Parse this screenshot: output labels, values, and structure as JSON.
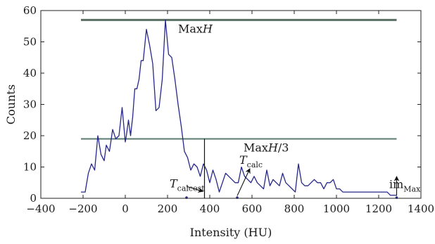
{
  "chart_data": {
    "type": "line",
    "xlabel": "Intensity (HU)",
    "ylabel": "Counts",
    "xlim": [
      -400,
      1400
    ],
    "ylim": [
      0,
      60
    ],
    "xticks": [
      "-400",
      "-200",
      "0",
      "200",
      "400",
      "600",
      "800",
      "1000",
      "1200",
      "1400"
    ],
    "yticks": [
      "0",
      "10",
      "20",
      "30",
      "40",
      "50",
      "60"
    ],
    "series": [
      {
        "color": "#27278a",
        "x": [
          -210,
          -190,
          -175,
          -160,
          -145,
          -130,
          -115,
          -100,
          -90,
          -75,
          -60,
          -45,
          -30,
          -15,
          0,
          5,
          15,
          25,
          35,
          45,
          55,
          65,
          75,
          85,
          100,
          115,
          130,
          145,
          160,
          175,
          190,
          205,
          220,
          235,
          250,
          265,
          280,
          295,
          310,
          325,
          340,
          355,
          370,
          385,
          400,
          415,
          430,
          445,
          460,
          475,
          490,
          505,
          520,
          535,
          550,
          565,
          580,
          595,
          610,
          625,
          640,
          655,
          670,
          685,
          700,
          715,
          730,
          745,
          760,
          775,
          790,
          805,
          820,
          835,
          850,
          865,
          880,
          895,
          910,
          925,
          940,
          955,
          970,
          985,
          1000,
          1015,
          1030,
          1045,
          1060,
          1075,
          1090,
          1105,
          1120,
          1135,
          1150,
          1165,
          1180,
          1195,
          1210,
          1225,
          1240,
          1255,
          1270,
          1285
        ],
        "values": [
          2,
          2,
          8,
          11,
          9,
          20,
          14,
          12,
          17,
          15,
          22,
          19,
          20,
          29,
          18,
          20,
          25,
          20,
          26,
          35,
          35,
          38,
          44,
          44,
          54,
          49,
          43,
          28,
          29,
          38,
          57,
          46,
          45,
          38,
          30,
          23,
          15,
          13,
          9,
          11,
          10,
          7,
          11,
          9,
          5,
          9,
          6,
          2,
          5,
          8,
          7,
          6,
          5,
          5,
          10,
          7,
          6,
          5,
          7,
          5,
          4,
          3,
          9,
          4,
          6,
          5,
          4,
          8,
          5,
          4,
          3,
          2,
          11,
          5,
          4,
          4,
          5,
          6,
          5,
          5,
          3,
          5,
          5,
          6,
          3,
          3,
          2,
          2,
          2,
          2,
          2,
          2,
          2,
          2,
          2,
          2,
          2,
          2,
          2,
          2,
          2,
          1,
          1,
          1
        ]
      }
    ],
    "hlines": [
      {
        "value": 57,
        "label_main": "Max",
        "label_var": "H",
        "label_suffix": "",
        "color": "#5a6e63"
      },
      {
        "value": 19,
        "label_main": "Max",
        "label_var": "H",
        "label_suffix": "/3",
        "color": "#5a7a70"
      }
    ],
    "vline": {
      "value": 375,
      "from": 0,
      "to": 19
    },
    "annotations": [
      {
        "id": "tcalcest",
        "main": "T",
        "sub": "calcest",
        "x": 375,
        "y": 2
      },
      {
        "id": "tcalc",
        "main": "T",
        "sub": "calc",
        "x": 530,
        "y": 0.5
      },
      {
        "id": "immax",
        "main": "im",
        "sub": "Max",
        "x": 1285,
        "y": 0.5
      }
    ],
    "grid": false,
    "legend": false
  }
}
